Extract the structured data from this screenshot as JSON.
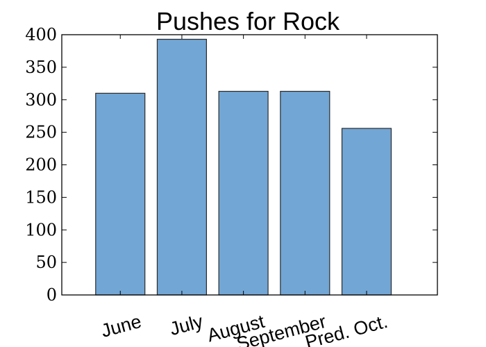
{
  "chart_data": {
    "type": "bar",
    "title": "Pushes for Rock",
    "xlabel": "",
    "ylabel": "",
    "categories": [
      "June",
      "July",
      "August",
      "September",
      "Pred. Oct."
    ],
    "values": [
      310,
      393,
      313,
      313,
      256
    ],
    "ylim": [
      0,
      400
    ],
    "yticks": [
      0,
      50,
      100,
      150,
      200,
      250,
      300,
      350,
      400
    ],
    "ytick_labels": [
      "0",
      "50",
      "100",
      "150",
      "200",
      "250",
      "300",
      "350",
      "400"
    ],
    "grid": false,
    "legend": "none",
    "colors": {
      "bar_fill": "#72a6d5",
      "bar_edge": "#2a2a2a"
    }
  }
}
